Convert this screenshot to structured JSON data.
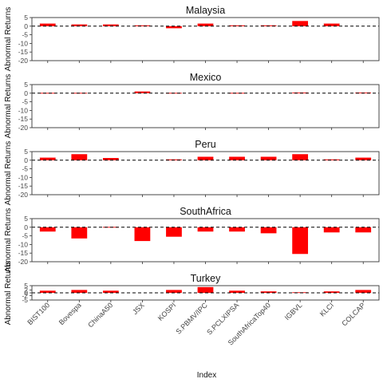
{
  "chart_data": {
    "type": "bar",
    "layout": "faceted-vertical",
    "xlabel": "Index",
    "ylabel": "Abnormal Returns",
    "categories": [
      "BIST100",
      "Bovespa",
      "ChinaA50",
      "JSX",
      "KOSPI",
      "S.PBMV/IPC",
      "S.PCLXIPSA",
      "SouthAfricaTop40",
      "IGBVL",
      "KLCI",
      "COLCAP"
    ],
    "reference_line": {
      "y": 0,
      "style": "dashed"
    },
    "bar_color": "#ff0000",
    "grid": false,
    "panels": [
      {
        "title": "Malaysia",
        "ylim": [
          -20,
          5
        ],
        "yticks": [
          5,
          0,
          -5,
          -10,
          -15,
          -20
        ],
        "values": [
          1.5,
          1.0,
          1.0,
          0.5,
          -1.2,
          1.5,
          0.5,
          0.5,
          3.0,
          1.5,
          null
        ]
      },
      {
        "title": "Mexico",
        "ylim": [
          -20,
          5
        ],
        "yticks": [
          5,
          0,
          -5,
          -10,
          -15,
          -20
        ],
        "values": [
          0.2,
          0.2,
          null,
          1.0,
          0.2,
          null,
          0.2,
          null,
          0.4,
          null,
          0.4
        ]
      },
      {
        "title": "Peru",
        "ylim": [
          -20,
          5
        ],
        "yticks": [
          5,
          0,
          -5,
          -10,
          -15,
          -20
        ],
        "values": [
          1.5,
          3.5,
          1.3,
          null,
          0.5,
          2.0,
          2.0,
          2.0,
          3.5,
          0.5,
          1.5
        ]
      },
      {
        "title": "SouthAfrica",
        "ylim": [
          -20,
          5
        ],
        "yticks": [
          5,
          0,
          -5,
          -10,
          -15,
          -20
        ],
        "values": [
          -2.5,
          -6.5,
          0.2,
          -8.0,
          -5.5,
          -2.5,
          -2.5,
          -3.5,
          -15.5,
          -3.0,
          -3.0
        ]
      },
      {
        "title": "Turkey",
        "ylim": [
          -5,
          5
        ],
        "yticks": [
          5,
          2,
          0,
          -2,
          -5
        ],
        "values": [
          1.5,
          2.0,
          1.5,
          null,
          2.0,
          4.0,
          1.5,
          1.0,
          0.4,
          1.0,
          2.0
        ]
      }
    ]
  }
}
